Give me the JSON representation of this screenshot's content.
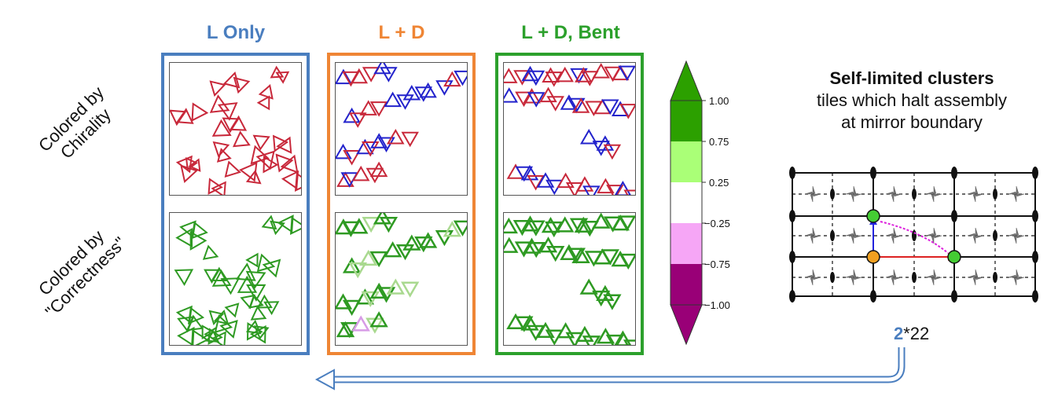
{
  "columns": [
    {
      "title": "L Only",
      "color": "#4a7ebf"
    },
    {
      "title": "L + D",
      "color": "#ef8534"
    },
    {
      "title": "L + D, Bent",
      "color": "#2ca02c"
    }
  ],
  "row_labels": {
    "chirality": [
      "Colored by",
      "Chirality"
    ],
    "correctness": [
      "Colored by",
      "\"Correctness\""
    ]
  },
  "colors": {
    "L_chirality": "#c8283a",
    "D_chirality": "#2222cc",
    "correct": "#2e9a22",
    "light_correct": "#a9d98f",
    "incorrect_pink": "#d79be6",
    "grey": "#c8c8c8"
  },
  "colorbar": {
    "ticks": [
      "1.00",
      "0.75",
      "0.25",
      "−0.25",
      "−0.75",
      "−1.00"
    ],
    "bands": [
      "#2ca000",
      "#aaff77",
      "#ffffff",
      "#f6a6f6",
      "#990077"
    ]
  },
  "right": {
    "title_bold": "Self-limited clusters",
    "title_line2": "tiles which halt assembly",
    "title_line3": "at mirror boundary",
    "orbifold_prefix": "2",
    "orbifold_suffix": "*22"
  }
}
